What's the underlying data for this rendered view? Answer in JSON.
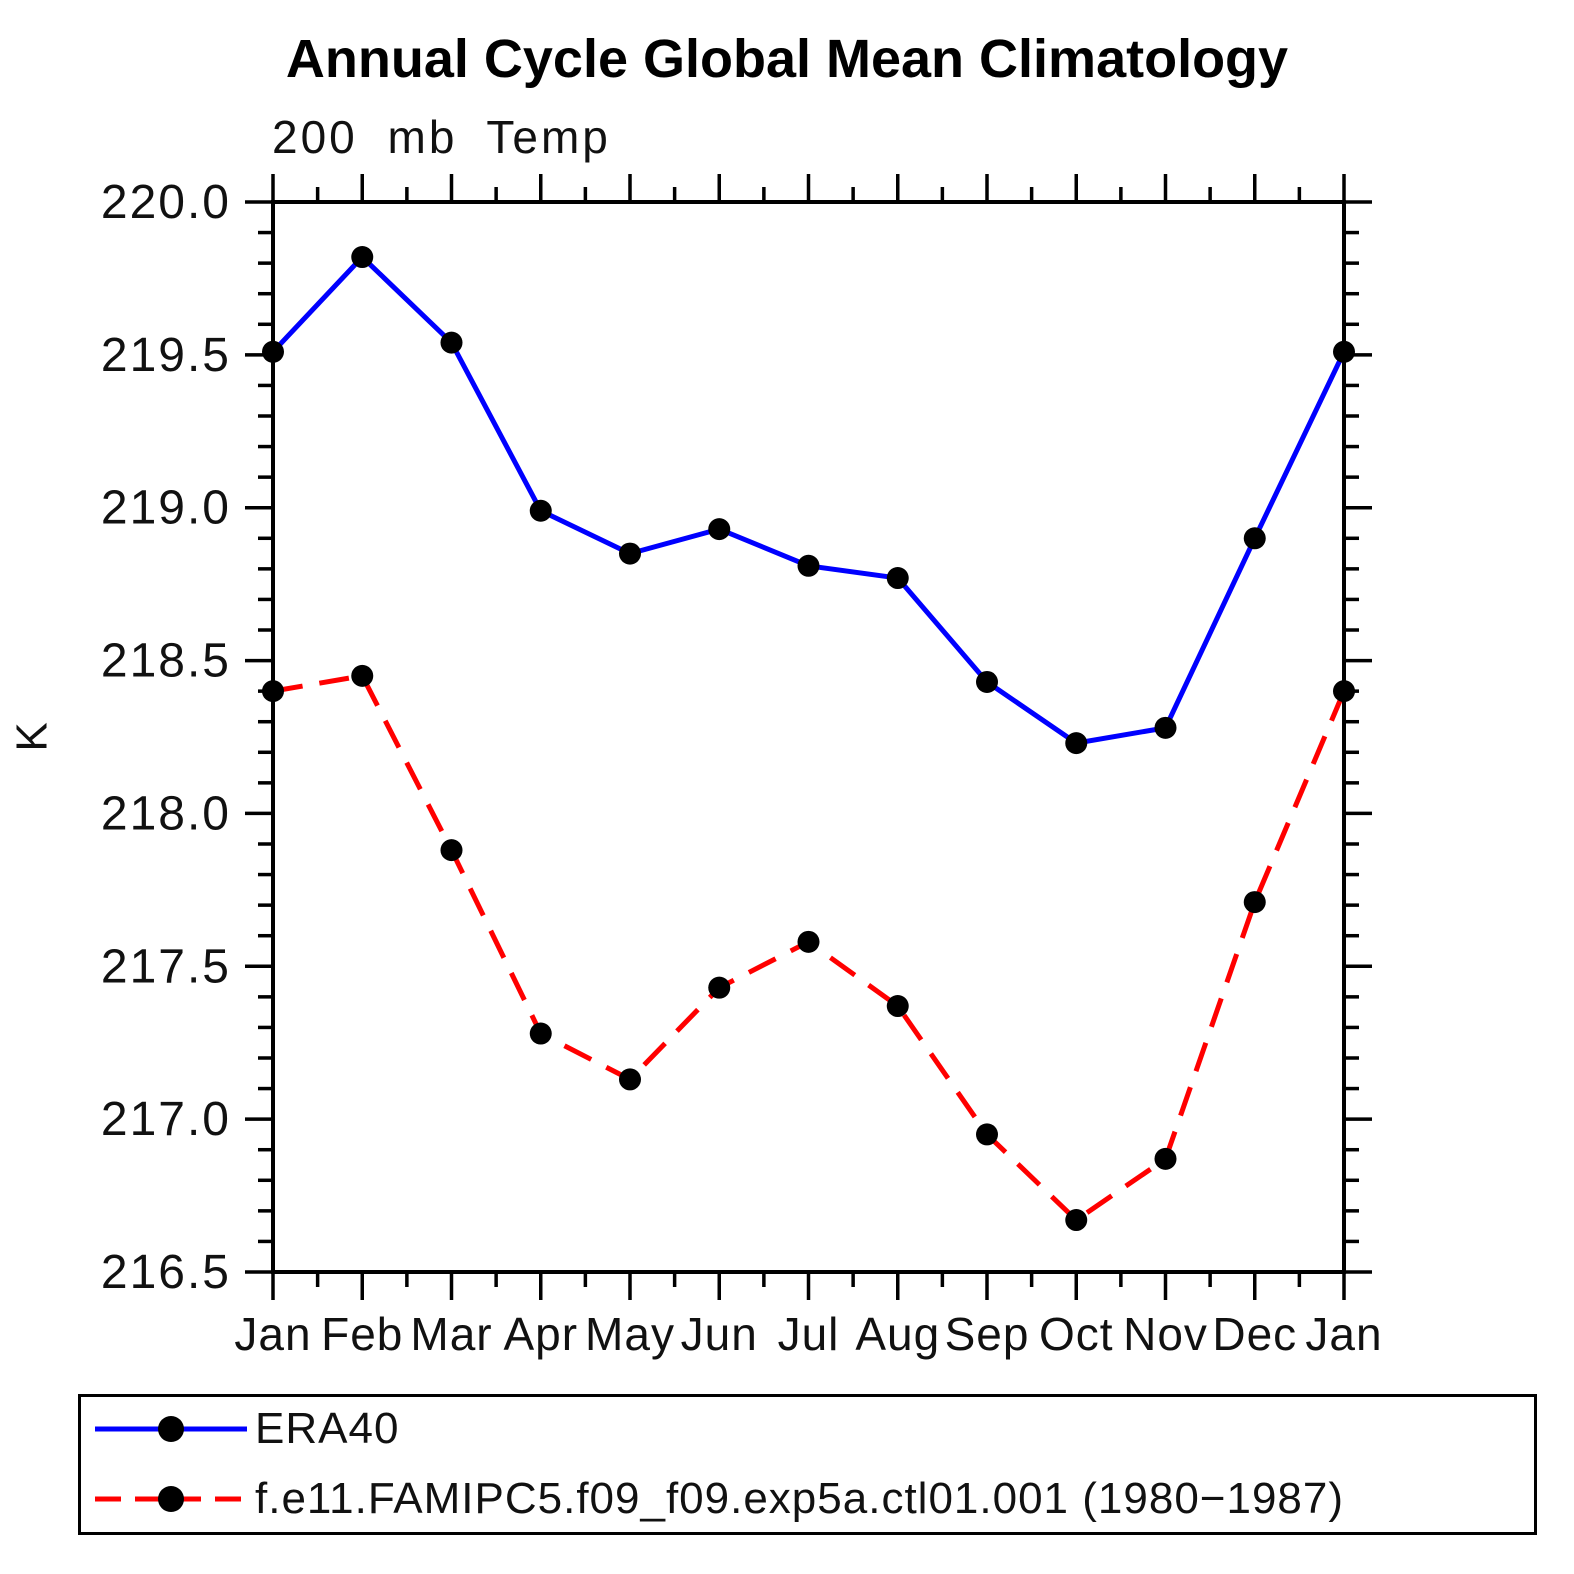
{
  "chart_data": {
    "type": "line",
    "title": "Annual Cycle Global Mean Climatology",
    "subtitle": "200 mb Temp",
    "ylabel": "K",
    "xlabel": "",
    "categories": [
      "Jan",
      "Feb",
      "Mar",
      "Apr",
      "May",
      "Jun",
      "Jul",
      "Aug",
      "Sep",
      "Oct",
      "Nov",
      "Dec",
      "Jan"
    ],
    "ylim": [
      216.5,
      220.0
    ],
    "ytick_major_step": 0.5,
    "ytick_minor_step": 0.1,
    "xtick_minor": "half-month",
    "grid": false,
    "legend_position": "bottom-box",
    "background": "#ffffff",
    "axis_color": "#000000",
    "marker_color": "#000000",
    "series": [
      {
        "name": "ERA40",
        "color": "#0000ff",
        "style": "solid",
        "marker": "circle",
        "values": [
          219.51,
          219.82,
          219.54,
          218.99,
          218.85,
          218.93,
          218.81,
          218.77,
          218.43,
          218.23,
          218.28,
          218.9,
          219.51
        ]
      },
      {
        "name": "f.e11.FAMIPC5.f09_f09.exp5a.ctl01.001 (1980−1987)",
        "color": "#ff0000",
        "style": "dashed",
        "marker": "circle",
        "values": [
          218.4,
          218.45,
          217.88,
          217.28,
          217.13,
          217.43,
          217.58,
          217.37,
          216.95,
          216.67,
          216.87,
          217.71,
          218.4
        ]
      }
    ]
  }
}
